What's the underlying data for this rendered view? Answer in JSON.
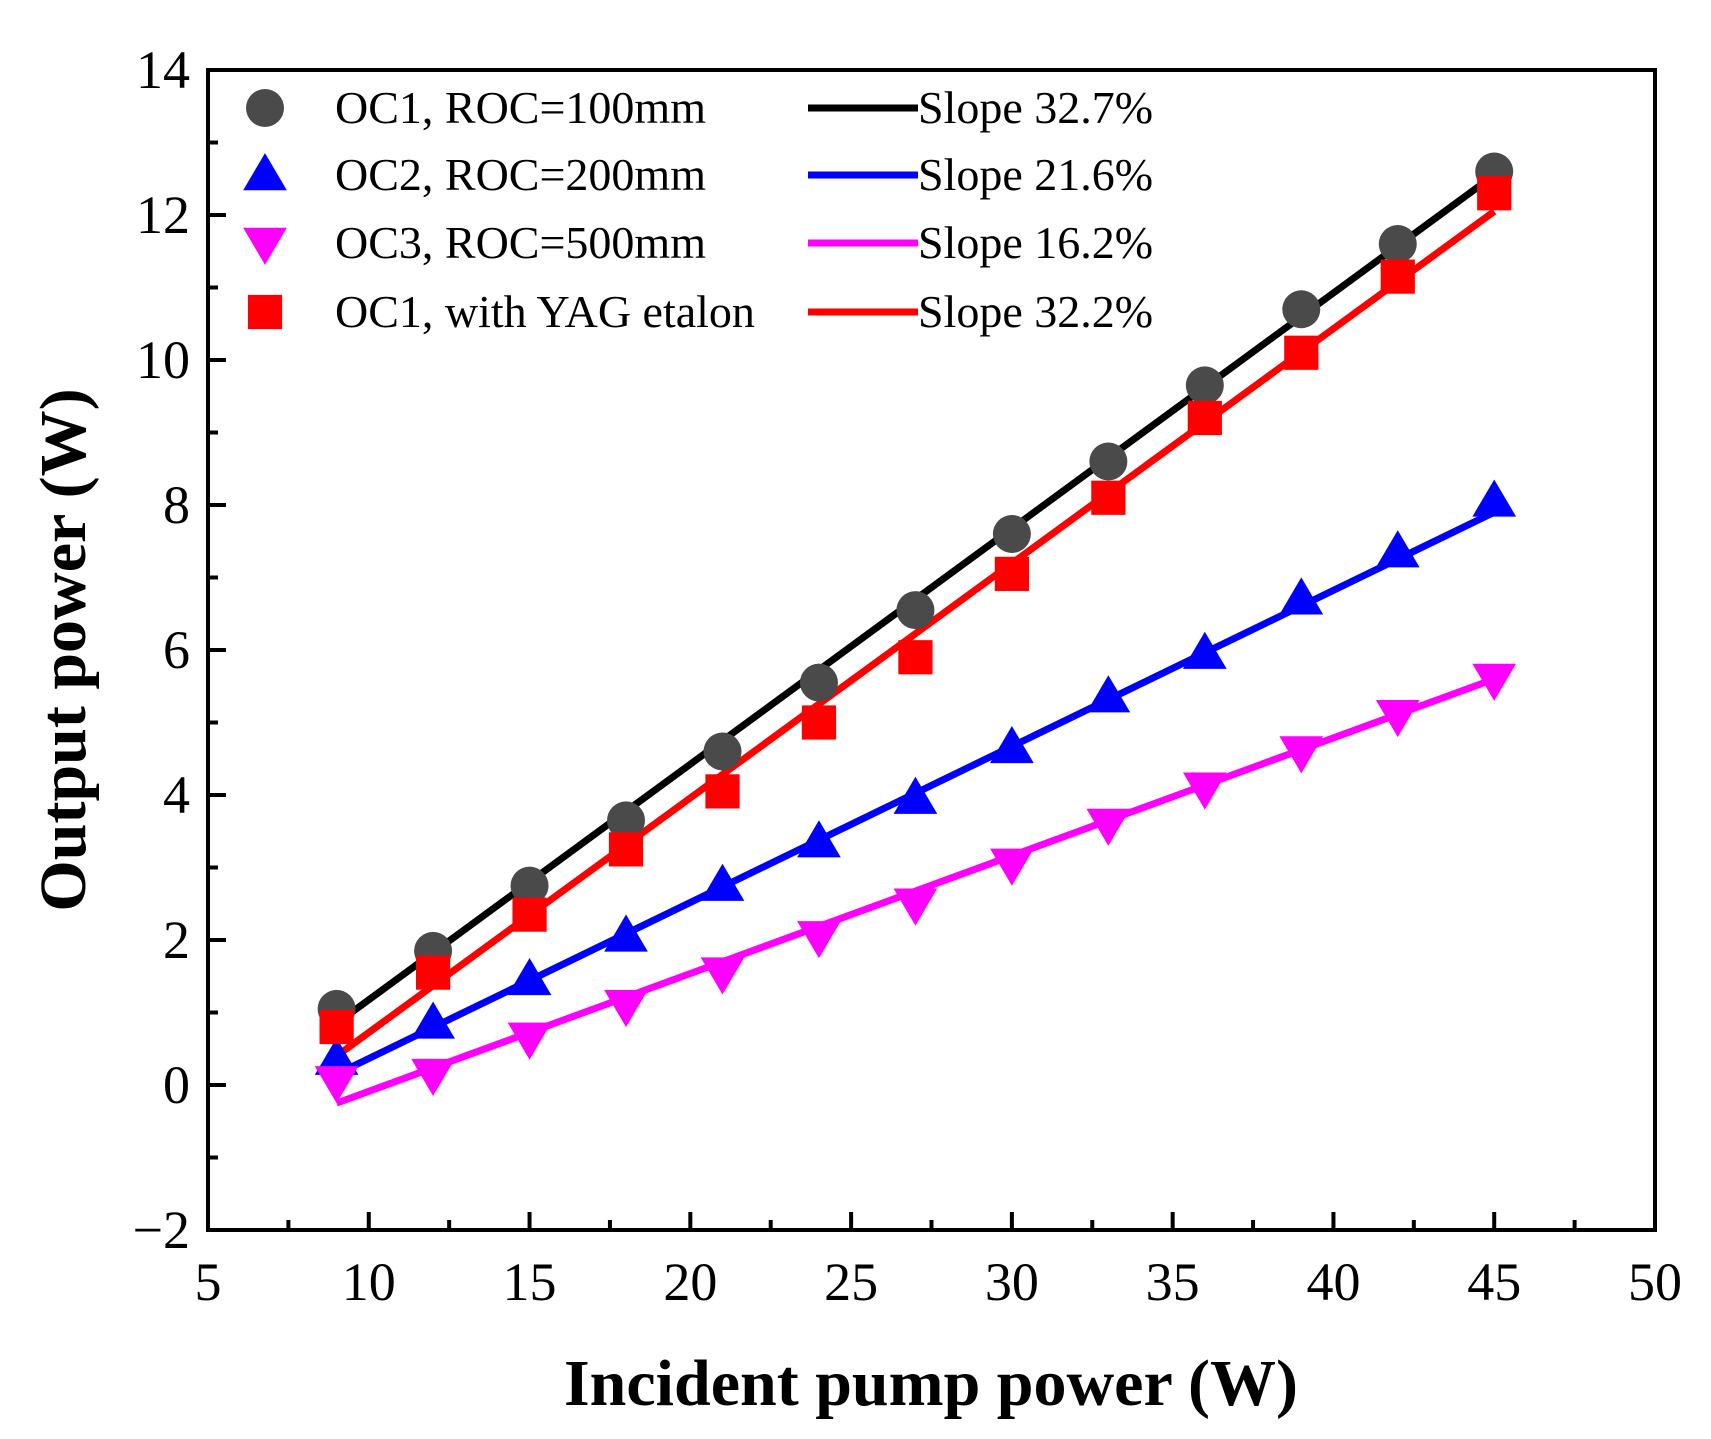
{
  "chart_data": {
    "type": "scatter",
    "xlabel": "Incident pump power (W)",
    "ylabel": "Output power (W)",
    "xlim": [
      5,
      50
    ],
    "ylim": [
      -2,
      14
    ],
    "xticks": [
      "5",
      "10",
      "15",
      "20",
      "25",
      "30",
      "35",
      "40",
      "45",
      "50"
    ],
    "yticks": [
      "−2",
      "0",
      "2",
      "4",
      "6",
      "8",
      "10",
      "12",
      "14"
    ],
    "legend_position": "top-left",
    "x": [
      9,
      12,
      15,
      18,
      21,
      24,
      27,
      30,
      33,
      36,
      39,
      42,
      45
    ],
    "series": [
      {
        "name": "OC1, ROC=100mm",
        "marker": "circle",
        "color": "#4a4a4a",
        "values": [
          1.05,
          1.85,
          2.75,
          3.65,
          4.6,
          5.55,
          6.55,
          7.6,
          8.6,
          9.65,
          10.7,
          11.6,
          12.6
        ]
      },
      {
        "name": "OC2, ROC=200mm",
        "marker": "triangle-up",
        "color": "#0000ff",
        "values": [
          0.35,
          0.85,
          1.45,
          2.05,
          2.75,
          3.35,
          3.95,
          4.65,
          5.35,
          5.95,
          6.7,
          7.35,
          8.05
        ]
      },
      {
        "name": "OC3, ROC=500mm",
        "marker": "triangle-down",
        "color": "#ff00ff",
        "values": [
          0.05,
          0.15,
          0.65,
          1.1,
          1.55,
          2.05,
          2.5,
          3.05,
          3.6,
          4.1,
          4.6,
          5.1,
          5.6
        ]
      },
      {
        "name": "OC1, with YAG etalon",
        "marker": "square",
        "color": "#ff0000",
        "values": [
          0.8,
          1.55,
          2.35,
          3.25,
          4.05,
          5.0,
          5.9,
          7.05,
          8.1,
          9.2,
          10.1,
          11.15,
          12.3
        ]
      }
    ],
    "fits": [
      {
        "name": "Slope 32.7%",
        "color": "#000000",
        "x": [
          9,
          45
        ],
        "y": [
          0.85,
          12.55
        ]
      },
      {
        "name": "Slope 21.6%",
        "color": "#0000ff",
        "x": [
          9,
          45
        ],
        "y": [
          0.15,
          7.9
        ]
      },
      {
        "name": "Slope 16.2%",
        "color": "#ff00ff",
        "x": [
          9,
          45
        ],
        "y": [
          -0.25,
          5.6
        ]
      },
      {
        "name": "Slope 32.2%",
        "color": "#ff0000",
        "x": [
          9,
          45
        ],
        "y": [
          0.4,
          12.05
        ]
      }
    ]
  }
}
